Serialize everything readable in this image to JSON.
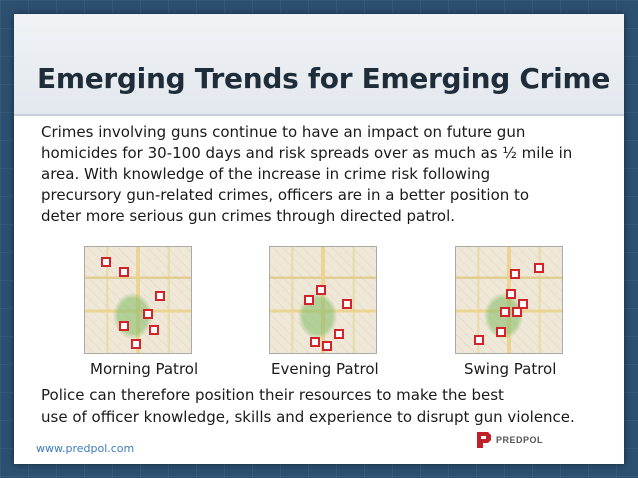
{
  "slide": {
    "title": "Emerging Trends for Emerging Crime",
    "body_lines": [
      "Crimes involving guns continue to have an impact on future gun",
      "homicides for 30-100 days and risk spreads over as much as ½ mile in",
      "area. With knowledge of the increase in crime risk following",
      "precursory gun-related crimes, officers are in a better position to",
      "deter more serious gun crimes through directed patrol."
    ],
    "maps": [
      {
        "label": "Morning Patrol"
      },
      {
        "label": "Evening Patrol"
      },
      {
        "label": "Swing Patrol"
      }
    ],
    "closing_lines": [
      "Police can therefore position their resources to make the best",
      "use of officer knowledge, skills and experience to disrupt gun violence."
    ],
    "footer_url": "www.predpol.com",
    "logo_text": "PREDPOL"
  },
  "colors": {
    "background": "#2c5070",
    "marker": "#d3222a",
    "url": "#3a7cc0"
  }
}
